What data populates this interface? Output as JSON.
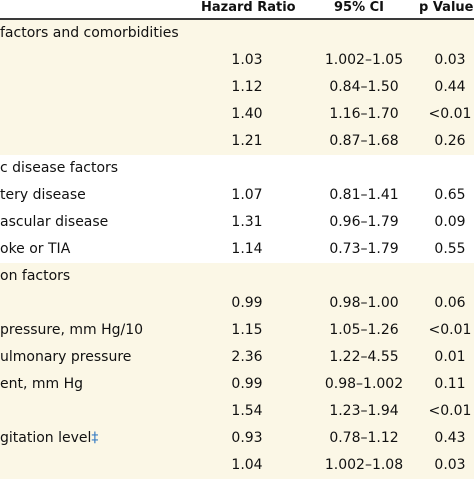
{
  "header": {
    "hr": "Hazard Ratio",
    "ci": "95% CI",
    "p": "p Value"
  },
  "rows": [
    {
      "label": "factors and comorbidities",
      "hr": "",
      "ci": "",
      "p": "",
      "shaded": true
    },
    {
      "label": "",
      "hr": "1.03",
      "ci": "1.002–1.05",
      "p": "0.03",
      "shaded": true
    },
    {
      "label": "",
      "hr": "1.12",
      "ci": "0.84–1.50",
      "p": "0.44",
      "shaded": true
    },
    {
      "label": "",
      "hr": "1.40",
      "ci": "1.16–1.70",
      "p": "<0.01",
      "shaded": true
    },
    {
      "label": "",
      "hr": "1.21",
      "ci": "0.87–1.68",
      "p": "0.26",
      "shaded": true
    },
    {
      "label": "c disease factors",
      "hr": "",
      "ci": "",
      "p": "",
      "shaded": false
    },
    {
      "label": "tery disease",
      "hr": "1.07",
      "ci": "0.81–1.41",
      "p": "0.65",
      "shaded": false
    },
    {
      "label": "ascular disease",
      "hr": "1.31",
      "ci": "0.96–1.79",
      "p": "0.09",
      "shaded": false
    },
    {
      "label": "oke or TIA",
      "hr": "1.14",
      "ci": "0.73–1.79",
      "p": "0.55",
      "shaded": false
    },
    {
      "label": "on factors",
      "hr": "",
      "ci": "",
      "p": "",
      "shaded": true
    },
    {
      "label": "",
      "hr": "0.99",
      "ci": "0.98–1.00",
      "p": "0.06",
      "shaded": true
    },
    {
      "label": "pressure, mm Hg/10",
      "hr": "1.15",
      "ci": "1.05–1.26",
      "p": "<0.01",
      "shaded": true
    },
    {
      "label": "ulmonary pressure",
      "hr": "2.36",
      "ci": "1.22–4.55",
      "p": "0.01",
      "shaded": true
    },
    {
      "label": "ent, mm Hg",
      "hr": "0.99",
      "ci": "0.98–1.002",
      "p": "0.11",
      "shaded": true
    },
    {
      "label": "",
      "hr": "1.54",
      "ci": "1.23–1.94",
      "p": "<0.01",
      "shaded": true
    },
    {
      "label": "gitation level",
      "label_mark": "‡",
      "hr": "0.93",
      "ci": "0.78–1.12",
      "p": "0.43",
      "shaded": true
    },
    {
      "label": "",
      "hr": "1.04",
      "ci": "1.002–1.08",
      "p": "0.03",
      "shaded": true
    }
  ]
}
